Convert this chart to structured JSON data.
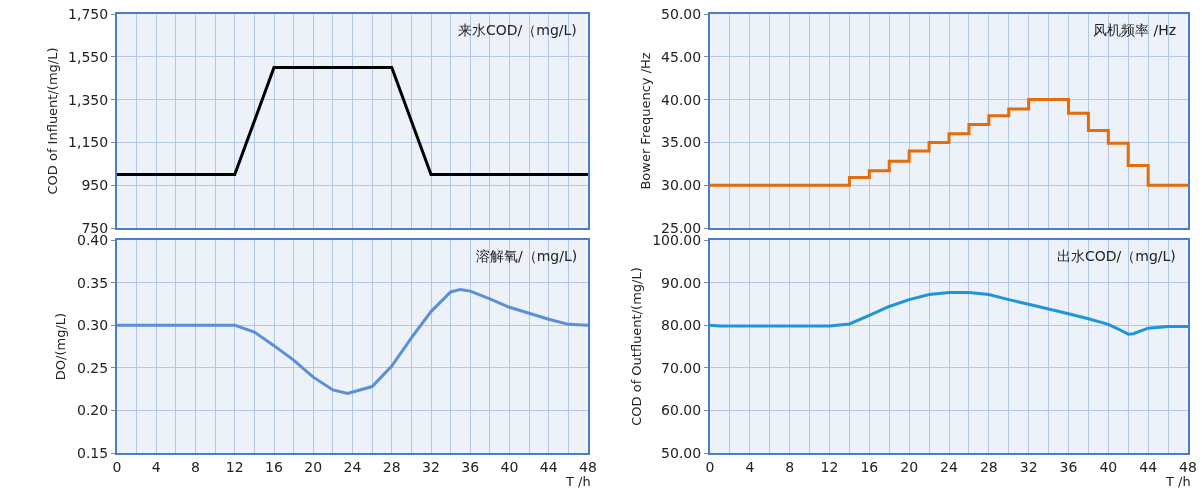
{
  "chart_data": [
    {
      "type": "line",
      "title": "来水COD/（mg/L)",
      "ylabel": "COD of Influent/(mg/L)",
      "x": [
        0,
        12,
        16,
        28,
        32,
        48
      ],
      "series": [
        {
          "color": "#000000",
          "values": [
            1000,
            1000,
            1500,
            1500,
            1000,
            1000
          ]
        }
      ],
      "xlim": [
        0,
        48
      ],
      "xticks": [
        0,
        {
          "value": 2,
          "label": null
        },
        4,
        {
          "value": 6,
          "label": null
        },
        8,
        {
          "value": 10,
          "label": null
        },
        12,
        {
          "value": 14,
          "label": null
        },
        16,
        {
          "value": 18,
          "label": null
        },
        20,
        {
          "value": 22,
          "label": null
        },
        24,
        {
          "value": 26,
          "label": null
        },
        28,
        {
          "value": 30,
          "label": null
        },
        32,
        {
          "value": 34,
          "label": null
        },
        36,
        {
          "value": 38,
          "label": null
        },
        40,
        {
          "value": 42,
          "label": null
        },
        44,
        {
          "value": 46,
          "label": null
        },
        48
      ],
      "ylim": [
        750,
        1750
      ],
      "yticks": [
        750,
        950,
        {
          "value": 1150,
          "label": "1,150"
        },
        {
          "value": 1350,
          "label": "1,350"
        },
        {
          "value": 1550,
          "label": "1,550"
        },
        {
          "value": 1750,
          "label": "1,750"
        }
      ],
      "grid": true,
      "tick_labels": "y"
    },
    {
      "type": "step",
      "title": "风机频率 /Hz",
      "ylabel": "Bower Frequency /Hz",
      "x": [
        0,
        14,
        16,
        18,
        20,
        22,
        24,
        26,
        28,
        30,
        32,
        36,
        38,
        40,
        42,
        44,
        48
      ],
      "series": [
        {
          "color": "#e46c0a",
          "values": [
            30,
            30.9,
            31.7,
            32.8,
            34,
            35,
            36,
            37.1,
            38.1,
            38.9,
            40,
            38.4,
            36.4,
            34.9,
            32.3,
            30,
            30
          ]
        }
      ],
      "xlim": [
        0,
        48
      ],
      "xticks": [
        0,
        {
          "value": 2,
          "label": null
        },
        4,
        {
          "value": 6,
          "label": null
        },
        8,
        {
          "value": 10,
          "label": null
        },
        12,
        {
          "value": 14,
          "label": null
        },
        16,
        {
          "value": 18,
          "label": null
        },
        20,
        {
          "value": 22,
          "label": null
        },
        24,
        {
          "value": 26,
          "label": null
        },
        28,
        {
          "value": 30,
          "label": null
        },
        32,
        {
          "value": 34,
          "label": null
        },
        36,
        {
          "value": 38,
          "label": null
        },
        40,
        {
          "value": 42,
          "label": null
        },
        44,
        {
          "value": 46,
          "label": null
        },
        48
      ],
      "ylim": [
        25,
        50
      ],
      "yticks": [
        {
          "value": 25,
          "label": "25.00"
        },
        {
          "value": 30,
          "label": "30.00"
        },
        {
          "value": 35,
          "label": "35.00"
        },
        {
          "value": 40,
          "label": "40.00"
        },
        {
          "value": 45,
          "label": "45.00"
        },
        {
          "value": 50,
          "label": "50.00"
        }
      ],
      "grid": true,
      "tick_labels": "y"
    },
    {
      "type": "line",
      "title": "溶解氧/（mg/L)",
      "ylabel": "DO/(mg/L)",
      "xlabel": "T /h",
      "x": [
        0,
        12,
        14,
        16,
        18,
        20,
        22,
        23.5,
        26,
        28,
        30,
        32,
        34,
        35,
        36,
        38,
        40,
        42,
        44,
        46,
        48
      ],
      "series": [
        {
          "color": "#5b8fd8",
          "values": [
            0.3,
            0.3,
            0.292,
            0.276,
            0.259,
            0.239,
            0.224,
            0.22,
            0.228,
            0.252,
            0.285,
            0.316,
            0.339,
            0.342,
            0.34,
            0.331,
            0.321,
            0.314,
            0.307,
            0.301,
            0.3
          ]
        }
      ],
      "xlim": [
        0,
        48
      ],
      "xticks": [
        0,
        {
          "value": 2,
          "label": null
        },
        4,
        {
          "value": 6,
          "label": null
        },
        8,
        {
          "value": 10,
          "label": null
        },
        12,
        {
          "value": 14,
          "label": null
        },
        16,
        {
          "value": 18,
          "label": null
        },
        20,
        {
          "value": 22,
          "label": null
        },
        24,
        {
          "value": 26,
          "label": null
        },
        28,
        {
          "value": 30,
          "label": null
        },
        32,
        {
          "value": 34,
          "label": null
        },
        36,
        {
          "value": 38,
          "label": null
        },
        40,
        {
          "value": 42,
          "label": null
        },
        44,
        {
          "value": 46,
          "label": null
        },
        48
      ],
      "ylim": [
        0.15,
        0.4
      ],
      "yticks": [
        0.15,
        {
          "value": 0.2,
          "label": "0.20"
        },
        0.25,
        {
          "value": 0.3,
          "label": "0.30"
        },
        0.35,
        {
          "value": 0.4,
          "label": "0.40"
        }
      ],
      "grid": true
    },
    {
      "type": "line",
      "title": "出水COD/（mg/L)",
      "ylabel": "COD of Outfluent/(mg/L)",
      "xlabel": "T /h",
      "x": [
        0,
        1,
        12,
        14,
        16,
        18,
        20,
        22,
        24,
        26,
        28,
        30,
        32,
        34,
        36,
        38,
        40,
        41,
        42,
        42.5,
        44,
        46,
        48
      ],
      "series": [
        {
          "color": "#1e96d8",
          "values": [
            80,
            79.8,
            79.8,
            80.3,
            82.3,
            84.4,
            86,
            87.2,
            87.7,
            87.7,
            87.2,
            86,
            84.9,
            83.8,
            82.7,
            81.5,
            80.2,
            79.1,
            77.9,
            78,
            79.3,
            79.7,
            79.7
          ]
        }
      ],
      "xlim": [
        0,
        48
      ],
      "xticks": [
        0,
        {
          "value": 2,
          "label": null
        },
        4,
        {
          "value": 6,
          "label": null
        },
        8,
        {
          "value": 10,
          "label": null
        },
        12,
        {
          "value": 14,
          "label": null
        },
        16,
        {
          "value": 18,
          "label": null
        },
        20,
        {
          "value": 22,
          "label": null
        },
        24,
        {
          "value": 26,
          "label": null
        },
        28,
        {
          "value": 30,
          "label": null
        },
        32,
        {
          "value": 34,
          "label": null
        },
        36,
        {
          "value": 38,
          "label": null
        },
        40,
        {
          "value": 42,
          "label": null
        },
        44,
        {
          "value": 46,
          "label": null
        },
        48
      ],
      "ylim": [
        50,
        100
      ],
      "yticks": [
        {
          "value": 50,
          "label": "50.00"
        },
        {
          "value": 60,
          "label": "60.00"
        },
        {
          "value": 70,
          "label": "70.00"
        },
        {
          "value": 80,
          "label": "80.00"
        },
        {
          "value": 90,
          "label": "90.00"
        },
        {
          "value": 100,
          "label": "100.00"
        }
      ],
      "grid": true
    }
  ]
}
